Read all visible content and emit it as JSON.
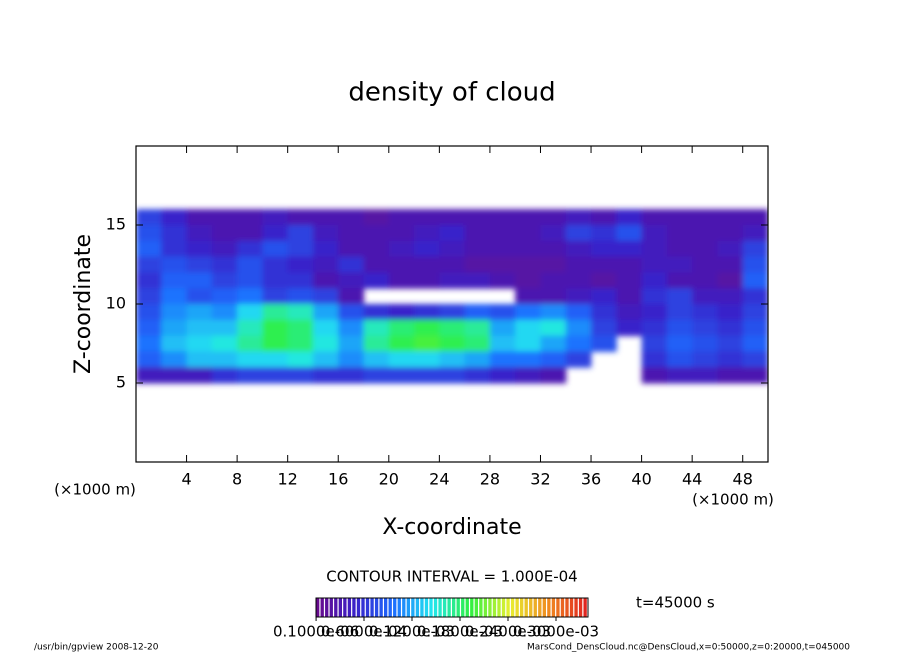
{
  "chart_data": {
    "type": "heatmap",
    "title": "density of cloud",
    "x_label": "X-coordinate",
    "y_label": "Z-coordinate",
    "x_unit": "(×1000 m)",
    "y_unit": "(×1000 m)",
    "contour_note": "CONTOUR INTERVAL = 1.000E-04",
    "time_note": "t=45000 s",
    "footer_left": "/usr/bin/gpview   2008-12-20",
    "footer_right": "MarsCond_DensCloud.nc@DensCloud,x=0:50000,z=0:20000,t=045000",
    "xlim": [
      0,
      50
    ],
    "ylim": [
      0,
      20
    ],
    "xticks": [
      4,
      8,
      12,
      16,
      20,
      24,
      28,
      32,
      36,
      40,
      44,
      48
    ],
    "yticks": [
      5,
      10,
      15
    ],
    "x": [
      1,
      3,
      5,
      7,
      9,
      11,
      13,
      15,
      17,
      19,
      21,
      23,
      25,
      27,
      29,
      31,
      33,
      35,
      37,
      39,
      41,
      43,
      45,
      47,
      49
    ],
    "y": [
      15.5,
      14.5,
      13.5,
      12.5,
      11.5,
      10.5,
      9.5,
      8.5,
      7.5,
      6.5,
      5.5
    ],
    "z": [
      [
        7e-05,
        5e-05,
        3e-05,
        3e-05,
        3e-05,
        4e-05,
        3e-05,
        3e-05,
        3e-05,
        2e-05,
        3e-05,
        3e-05,
        3e-05,
        3e-05,
        3e-05,
        3e-05,
        3e-05,
        4e-05,
        3e-05,
        5e-05,
        3e-05,
        3e-05,
        3e-05,
        3e-05,
        3e-05
      ],
      [
        8e-05,
        6e-05,
        4e-05,
        3e-05,
        3e-05,
        5e-05,
        7e-05,
        4e-05,
        3e-05,
        3e-05,
        3e-05,
        4e-05,
        5e-05,
        3e-05,
        3e-05,
        3e-05,
        4e-05,
        7e-05,
        6e-05,
        8e-05,
        4e-05,
        3e-05,
        3e-05,
        3e-05,
        4e-05
      ],
      [
        9e-05,
        6e-05,
        5e-05,
        4e-05,
        6e-05,
        8e-05,
        7e-05,
        5e-05,
        3e-05,
        3e-05,
        4e-05,
        5e-05,
        4e-05,
        3e-05,
        3e-05,
        3e-05,
        3e-05,
        4e-05,
        5e-05,
        5e-05,
        4e-05,
        3e-05,
        3e-05,
        4e-05,
        7e-05
      ],
      [
        7e-05,
        8e-05,
        7e-05,
        6e-05,
        8e-05,
        6e-05,
        5e-05,
        4e-05,
        6e-05,
        3e-05,
        3e-05,
        3e-05,
        3e-05,
        2e-05,
        2e-05,
        2e-05,
        2e-05,
        3e-05,
        3e-05,
        3e-05,
        4e-05,
        4e-05,
        3e-05,
        3e-05,
        8e-05
      ],
      [
        6e-05,
        9e-05,
        9e-05,
        7e-05,
        8e-05,
        6e-05,
        6e-05,
        3e-05,
        4e-05,
        5e-05,
        3e-05,
        3e-05,
        4e-05,
        4e-05,
        3e-05,
        2e-05,
        3e-05,
        3e-05,
        2e-05,
        3e-05,
        5e-05,
        3e-05,
        3e-05,
        2e-05,
        9e-05
      ],
      [
        7e-05,
        0.0001,
        8e-05,
        9e-05,
        0.0001,
        7e-05,
        8e-05,
        7e-05,
        3e-05,
        null,
        null,
        null,
        null,
        null,
        null,
        3e-05,
        3e-05,
        4e-05,
        5e-05,
        3e-05,
        6e-05,
        7e-05,
        4e-05,
        4e-05,
        6e-05
      ],
      [
        8e-05,
        0.00011,
        0.00012,
        0.00011,
        0.00014,
        0.00017,
        0.00016,
        0.00012,
        8e-05,
        6e-05,
        5e-05,
        6e-05,
        7e-05,
        9e-05,
        8e-05,
        0.0001,
        0.00011,
        9e-05,
        6e-05,
        4e-05,
        5e-05,
        7e-05,
        6e-05,
        5e-05,
        7e-05
      ],
      [
        9e-05,
        0.00012,
        0.00013,
        0.00013,
        0.00016,
        0.00019,
        0.00018,
        0.00014,
        0.00011,
        0.00016,
        0.00018,
        0.00019,
        0.00018,
        0.00017,
        0.00012,
        0.00014,
        0.00015,
        0.00011,
        7e-05,
        5e-05,
        6e-05,
        8e-05,
        7e-05,
        6e-05,
        8e-05
      ],
      [
        0.0001,
        0.00013,
        0.00014,
        0.00015,
        0.00017,
        0.00019,
        0.00018,
        0.00015,
        0.00012,
        0.00017,
        0.00019,
        0.0002,
        0.00019,
        0.00018,
        0.00013,
        0.00014,
        0.00012,
        0.0001,
        8e-05,
        null,
        7e-05,
        9e-05,
        8e-05,
        7e-05,
        9e-05
      ],
      [
        9e-05,
        0.00011,
        0.00013,
        0.00013,
        0.00014,
        0.00014,
        0.00015,
        0.00013,
        0.00011,
        0.00013,
        0.00014,
        0.00014,
        0.00013,
        0.00012,
        0.0001,
        0.0001,
        9e-05,
        7e-05,
        null,
        null,
        6e-05,
        8e-05,
        7e-05,
        6e-05,
        7e-05
      ],
      [
        4e-05,
        4e-05,
        4e-05,
        6e-05,
        7e-05,
        7e-05,
        7e-05,
        6e-05,
        6e-05,
        7e-05,
        7e-05,
        7e-05,
        7e-05,
        6e-05,
        5e-05,
        4e-05,
        3e-05,
        null,
        null,
        null,
        3e-05,
        4e-05,
        4e-05,
        3e-05,
        3e-05
      ]
    ],
    "colormap": [
      "#6a0a8a",
      "#3a20c8",
      "#1c6cff",
      "#22e6f0",
      "#30f040",
      "#e8f030",
      "#f08a20",
      "#e02020"
    ],
    "clim": [
      0,
      0.00034
    ],
    "cticks": [
      {
        "value": 1e-07,
        "label": "0.1000e-06"
      },
      {
        "value": 6e-05,
        "label": "0.6000e-04"
      },
      {
        "value": 0.00012,
        "label": "0.1200e-03"
      },
      {
        "value": 0.00018,
        "label": "0.1800e-03"
      },
      {
        "value": 0.00024,
        "label": "0.2400e-03"
      },
      {
        "value": 0.0003,
        "label": "0.3000e-03"
      }
    ]
  }
}
